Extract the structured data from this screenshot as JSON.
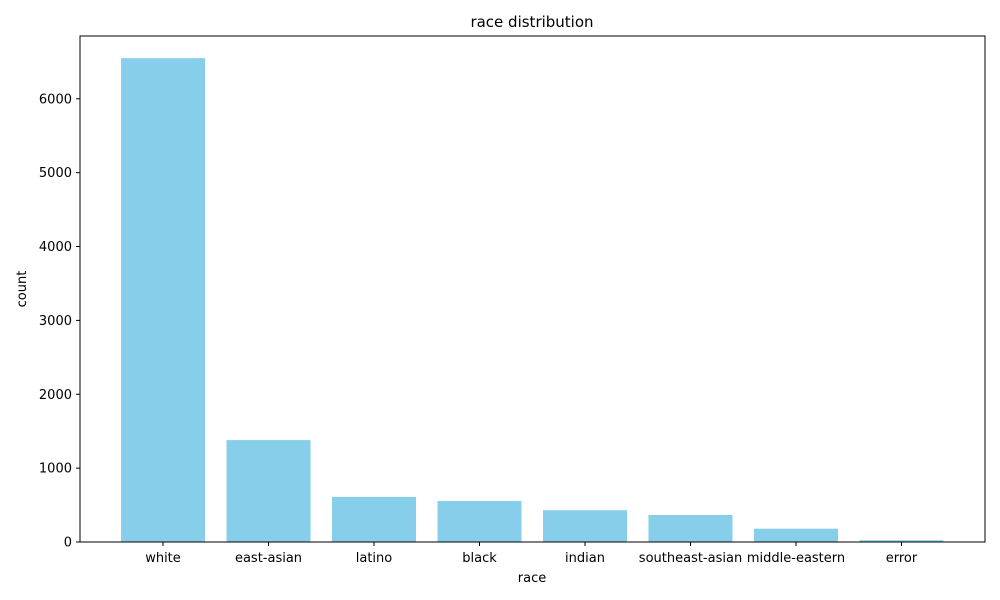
{
  "chart_data": {
    "type": "bar",
    "title": "race distribution",
    "xlabel": "race",
    "ylabel": "count",
    "categories": [
      "white",
      "east-asian",
      "latino",
      "black",
      "indian",
      "southeast-asian",
      "middle-eastern",
      "error"
    ],
    "values": [
      6550,
      1380,
      610,
      555,
      430,
      365,
      180,
      25
    ],
    "ylim": [
      0,
      6850
    ],
    "yticks": [
      0,
      1000,
      2000,
      3000,
      4000,
      5000,
      6000
    ],
    "bar_color": "#87CEEB",
    "grid": false,
    "legend": "none"
  }
}
